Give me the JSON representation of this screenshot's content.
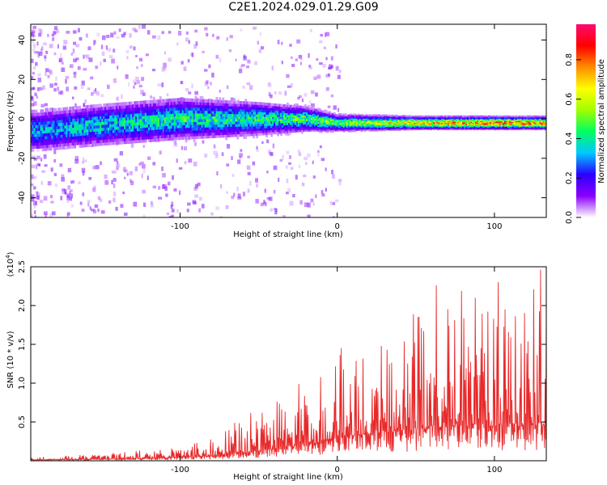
{
  "title": "C2E1.2024.029.01.29.G09",
  "chart_data": [
    {
      "type": "heatmap",
      "xlabel": "Height of straight line (km)",
      "ylabel": "Frequency (Hz)",
      "xlim": [
        -195,
        133
      ],
      "ylim": [
        -50,
        48
      ],
      "xticks": [
        "-100",
        "0",
        "100"
      ],
      "yticks": [
        "-40",
        "-20",
        "0",
        "20",
        "40"
      ],
      "colorbar": {
        "label": "Normalized spectral amplitude",
        "range": [
          0.0,
          0.98
        ],
        "ticks": [
          "0.0",
          "0.2",
          "0.4",
          "0.6",
          "0.8"
        ],
        "colormap": [
          "#ffffff",
          "#8a00ff",
          "#2a00ff",
          "#00c8ff",
          "#00ff60",
          "#a0ff00",
          "#ffff00",
          "#ff8c00",
          "#ff0000",
          "#ff0a70"
        ]
      },
      "ridge": [
        {
          "x": -190,
          "y": -6,
          "spread": 5,
          "amp": 0.35
        },
        {
          "x": -150,
          "y": -3,
          "spread": 5,
          "amp": 0.4
        },
        {
          "x": -100,
          "y": 0,
          "spread": 5,
          "amp": 0.45
        },
        {
          "x": -50,
          "y": 0,
          "spread": 4,
          "amp": 0.45
        },
        {
          "x": -20,
          "y": 0,
          "spread": 3,
          "amp": 0.5
        },
        {
          "x": 0,
          "y": -2,
          "spread": 2,
          "amp": 0.55
        },
        {
          "x": 50,
          "y": -2,
          "spread": 1.5,
          "amp": 0.75
        },
        {
          "x": 100,
          "y": -2,
          "spread": 1.5,
          "amp": 0.85
        },
        {
          "x": 133,
          "y": -2,
          "spread": 1.5,
          "amp": 0.85
        }
      ]
    },
    {
      "type": "line",
      "xlabel": "Height of straight line (km)",
      "ylabel": "SNR (10 * v/v)",
      "multiplier": "(x10",
      "multiplier_exp": "4",
      "multiplier_close": ")",
      "xlim": [
        -195,
        133
      ],
      "ylim": [
        0,
        2.5
      ],
      "xticks": [
        "-100",
        "0",
        "100"
      ],
      "yticks": [
        "0.5",
        "1.0",
        "1.5",
        "2.0",
        "2.5"
      ],
      "series": [
        {
          "color": "#e8292a",
          "envelope": [
            {
              "x": -195,
              "base": 0.01,
              "peak": 0.05
            },
            {
              "x": -150,
              "base": 0.02,
              "peak": 0.08
            },
            {
              "x": -120,
              "base": 0.03,
              "peak": 0.15
            },
            {
              "x": -100,
              "base": 0.04,
              "peak": 0.2
            },
            {
              "x": -80,
              "base": 0.06,
              "peak": 0.3
            },
            {
              "x": -60,
              "base": 0.1,
              "peak": 0.55
            },
            {
              "x": -40,
              "base": 0.15,
              "peak": 0.8
            },
            {
              "x": -20,
              "base": 0.2,
              "peak": 1.05
            },
            {
              "x": 0,
              "base": 0.3,
              "peak": 1.35
            },
            {
              "x": 20,
              "base": 0.35,
              "peak": 1.6
            },
            {
              "x": 50,
              "base": 0.4,
              "peak": 1.9
            },
            {
              "x": 70,
              "base": 0.45,
              "peak": 2.4
            },
            {
              "x": 100,
              "base": 0.45,
              "peak": 2.35
            },
            {
              "x": 133,
              "base": 0.45,
              "peak": 2.5
            }
          ]
        }
      ]
    }
  ]
}
